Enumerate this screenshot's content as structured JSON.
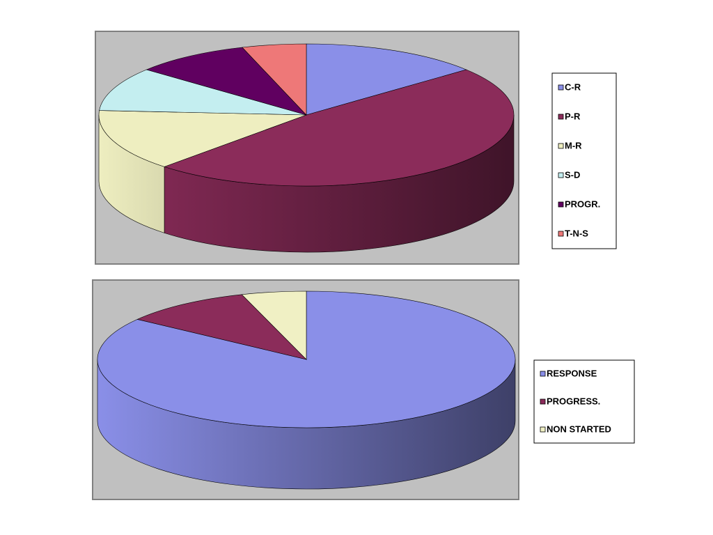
{
  "chart_data": [
    {
      "type": "pie3d",
      "categories": [
        "C-R",
        "P-R",
        "M-R",
        "S-D",
        "PROGR.",
        "T-N-S"
      ],
      "values": [
        14,
        48,
        14,
        10,
        9,
        5
      ],
      "colors": [
        "#8a8fe8",
        "#8b2c5a",
        "#eeeec0",
        "#c4eef0",
        "#600060",
        "#ee7878"
      ]
    },
    {
      "type": "pie3d",
      "categories": [
        "RESPONSE",
        "PROGRESS.",
        "NON STARTED"
      ],
      "values": [
        85,
        10,
        5
      ],
      "colors": [
        "#8a8fe8",
        "#8b2c5a",
        "#f0f0c4"
      ]
    }
  ]
}
